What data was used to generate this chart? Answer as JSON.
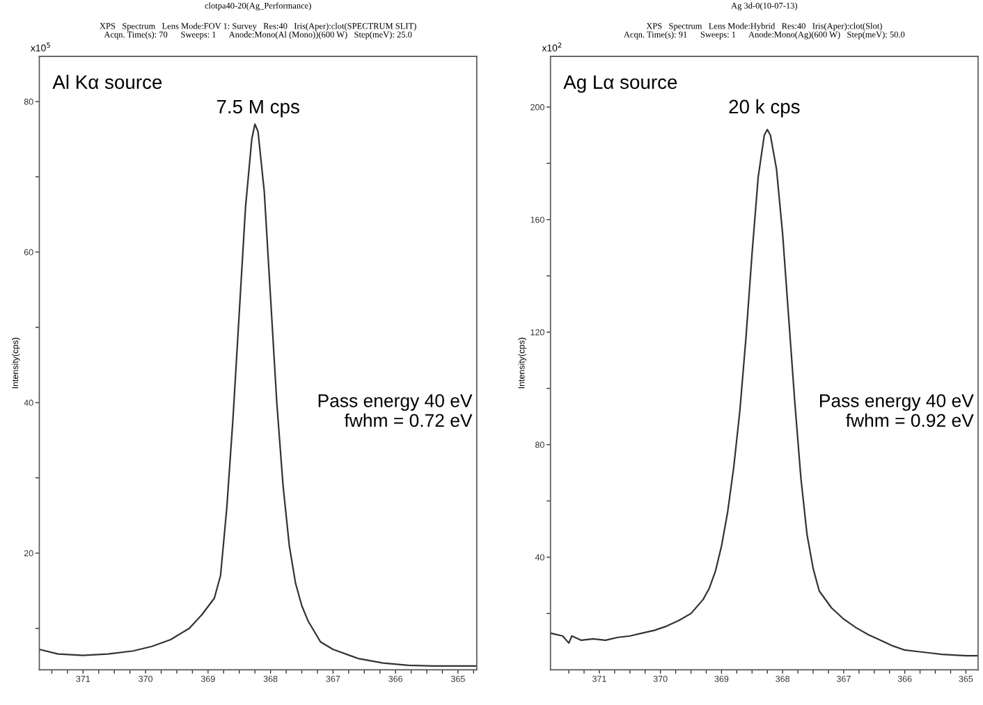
{
  "chart_data": [
    {
      "type": "line",
      "title": "clotpa40-20(Ag_Performance)",
      "subtitle": "XPS   Spectrum   Lens Mode:FOV 1: Survey   Res:40   Iris(Aper):clot(SPECTRUM SLIT)\nAcqn. Time(s): 70      Sweeps: 1      Anode:Mono(Al (Mono))(600 W)   Step(meV): 25.0",
      "ylabel": "Intensity(cps)",
      "annotations": [
        "x10$^{5}$",
        "Al Kα source",
        "7.5 M cps",
        "Pass energy 40 eV\nfwhm = 0.72 eV"
      ],
      "x": [
        371.7,
        371.4,
        371.0,
        370.6,
        370.2,
        369.9,
        369.6,
        369.3,
        369.1,
        368.9,
        368.8,
        368.7,
        368.6,
        368.5,
        368.4,
        368.3,
        368.25,
        368.2,
        368.1,
        368.0,
        367.9,
        367.8,
        367.7,
        367.6,
        367.5,
        367.4,
        367.2,
        367.0,
        366.6,
        366.2,
        365.8,
        365.4,
        364.7
      ],
      "series": [
        {
          "color": "#333333",
          "values": [
            7.2,
            6.6,
            6.4,
            6.6,
            7.0,
            7.6,
            8.5,
            10.0,
            11.8,
            14,
            17,
            26,
            38,
            52,
            66,
            75,
            77,
            76,
            68,
            54,
            40,
            29,
            21,
            16,
            13,
            11,
            8.2,
            7.2,
            6.0,
            5.4,
            5.1,
            5.0,
            5.0
          ]
        }
      ],
      "xlim": [
        371.7,
        364.7
      ],
      "ylim": [
        4.5,
        86
      ],
      "xticks": [
        {
          "value": 371.5,
          "label": null
        },
        {
          "value": 371.25,
          "label": null
        },
        371,
        {
          "value": 370.75,
          "label": null
        },
        {
          "value": 370.5,
          "label": null
        },
        {
          "value": 370.25,
          "label": null
        },
        370,
        {
          "value": 369.75,
          "label": null
        },
        {
          "value": 369.5,
          "label": null
        },
        {
          "value": 369.25,
          "label": null
        },
        369,
        {
          "value": 368.75,
          "label": null
        },
        {
          "value": 368.5,
          "label": null
        },
        {
          "value": 368.25,
          "label": null
        },
        368,
        {
          "value": 367.75,
          "label": null
        },
        {
          "value": 367.5,
          "label": null
        },
        {
          "value": 367.25,
          "label": null
        },
        367,
        {
          "value": 366.75,
          "label": null
        },
        {
          "value": 366.5,
          "label": null
        },
        {
          "value": 366.25,
          "label": null
        },
        366,
        {
          "value": 365.75,
          "label": null
        },
        {
          "value": 365.5,
          "label": null
        },
        {
          "value": 365.25,
          "label": null
        },
        365,
        {
          "value": 364.75,
          "label": null
        }
      ],
      "yticks": [
        {
          "value": 10,
          "label": null
        },
        20,
        {
          "value": 30,
          "label": null
        },
        40,
        {
          "value": 50,
          "label": null
        },
        60,
        {
          "value": 70,
          "label": null
        },
        80
      ],
      "grid": false,
      "legend": false,
      "marker": "none",
      "line_style": "solid"
    },
    {
      "type": "line",
      "title": "Ag 3d-0(10-07-13)",
      "subtitle": "XPS   Spectrum   Lens Mode:Hybrid   Res:40   Iris(Aper):clot(Slot)\nAcqn. Time(s): 91      Sweeps: 1      Anode:Mono(Ag)(600 W)   Step(meV): 50.0",
      "ylabel": "Intensity(cps)",
      "annotations": [
        "x10$^{2}$",
        "Ag Lα source",
        "20 k cps",
        "Pass energy 40 eV\nfwhm = 0.92 eV"
      ],
      "x": [
        371.8,
        371.6,
        371.5,
        371.45,
        371.3,
        371.1,
        370.9,
        370.7,
        370.5,
        370.3,
        370.1,
        369.9,
        369.7,
        369.5,
        369.3,
        369.2,
        369.1,
        369.0,
        368.9,
        368.8,
        368.7,
        368.6,
        368.5,
        368.4,
        368.3,
        368.25,
        368.2,
        368.1,
        368.0,
        367.9,
        367.8,
        367.7,
        367.6,
        367.5,
        367.4,
        367.2,
        367.0,
        366.8,
        366.6,
        366.4,
        366.2,
        366.0,
        365.8,
        365.6,
        365.4,
        365.0,
        364.8
      ],
      "series": [
        {
          "color": "#333333",
          "values": [
            13,
            12,
            9.5,
            12,
            10.5,
            11,
            10.5,
            11.5,
            12,
            13,
            14,
            15.5,
            17.5,
            20,
            25,
            29,
            35,
            44,
            56,
            72,
            92,
            118,
            148,
            175,
            190,
            192,
            190,
            178,
            155,
            125,
            95,
            68,
            48,
            36,
            28,
            22,
            18,
            15,
            12.5,
            10.5,
            8.5,
            7,
            6.5,
            6,
            5.5,
            5,
            5
          ]
        }
      ],
      "xlim": [
        371.8,
        364.8
      ],
      "ylim": [
        0,
        218
      ],
      "xticks": [
        {
          "value": 371.5,
          "label": null
        },
        {
          "value": 371.25,
          "label": null
        },
        371,
        {
          "value": 370.75,
          "label": null
        },
        {
          "value": 370.5,
          "label": null
        },
        {
          "value": 370.25,
          "label": null
        },
        370,
        {
          "value": 369.75,
          "label": null
        },
        {
          "value": 369.5,
          "label": null
        },
        {
          "value": 369.25,
          "label": null
        },
        369,
        {
          "value": 368.75,
          "label": null
        },
        {
          "value": 368.5,
          "label": null
        },
        {
          "value": 368.25,
          "label": null
        },
        368,
        {
          "value": 367.75,
          "label": null
        },
        {
          "value": 367.5,
          "label": null
        },
        {
          "value": 367.25,
          "label": null
        },
        367,
        {
          "value": 366.75,
          "label": null
        },
        {
          "value": 366.5,
          "label": null
        },
        {
          "value": 366.25,
          "label": null
        },
        366,
        {
          "value": 365.75,
          "label": null
        },
        {
          "value": 365.5,
          "label": null
        },
        {
          "value": 365.25,
          "label": null
        },
        365
      ],
      "yticks": [
        {
          "value": 20,
          "label": null
        },
        40,
        {
          "value": 60,
          "label": null
        },
        80,
        {
          "value": 100,
          "label": null
        },
        120,
        {
          "value": 140,
          "label": null
        },
        160,
        {
          "value": 180,
          "label": null
        },
        200
      ],
      "grid": false,
      "legend": false,
      "marker": "none",
      "line_style": "solid"
    }
  ]
}
